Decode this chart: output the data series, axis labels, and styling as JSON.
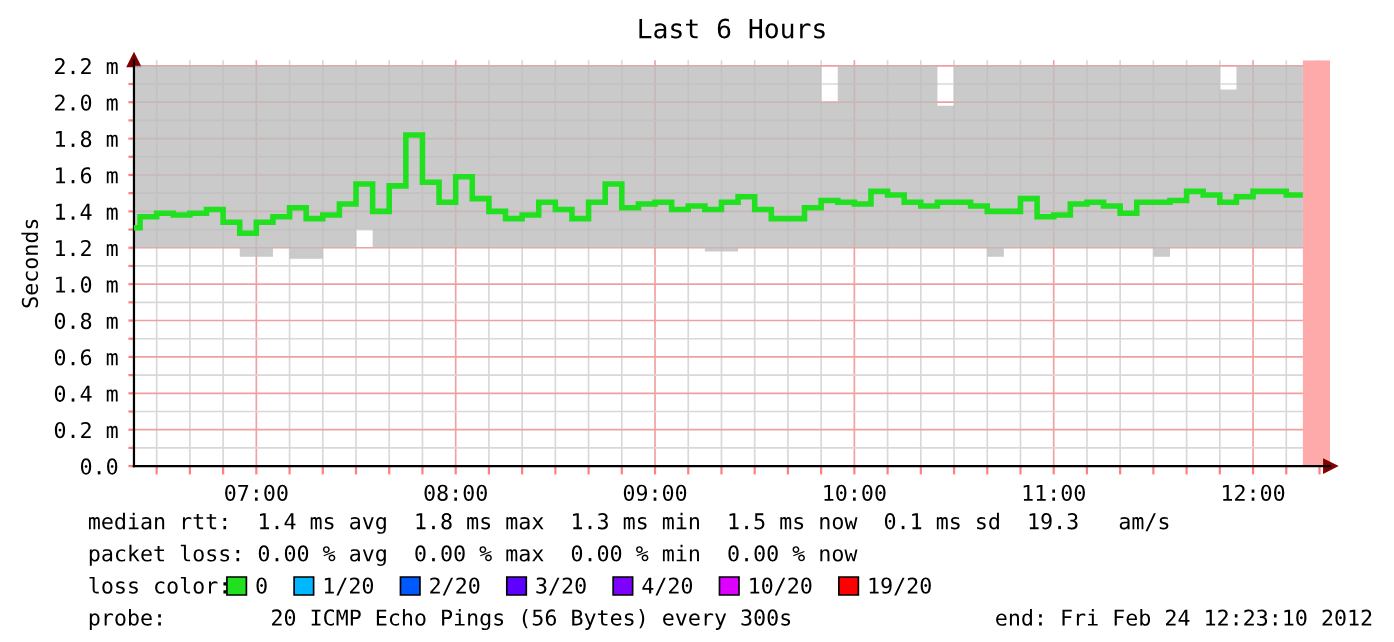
{
  "chart_data": {
    "type": "step",
    "title": "Last 6 Hours",
    "ylabel": "Seconds",
    "xlim": [
      6.3861,
      12.3861
    ],
    "xticks": [
      {
        "value": 6.5,
        "label": null
      },
      {
        "value": 6.6667,
        "label": null
      },
      {
        "value": 6.8333,
        "label": null
      },
      {
        "value": 7,
        "label": "07:00"
      },
      {
        "value": 7.1667,
        "label": null
      },
      {
        "value": 7.3333,
        "label": null
      },
      {
        "value": 7.5,
        "label": null
      },
      {
        "value": 7.6667,
        "label": null
      },
      {
        "value": 7.8333,
        "label": null
      },
      {
        "value": 8,
        "label": "08:00"
      },
      {
        "value": 8.1667,
        "label": null
      },
      {
        "value": 8.3333,
        "label": null
      },
      {
        "value": 8.5,
        "label": null
      },
      {
        "value": 8.6667,
        "label": null
      },
      {
        "value": 8.8333,
        "label": null
      },
      {
        "value": 9,
        "label": "09:00"
      },
      {
        "value": 9.1667,
        "label": null
      },
      {
        "value": 9.3333,
        "label": null
      },
      {
        "value": 9.5,
        "label": null
      },
      {
        "value": 9.6667,
        "label": null
      },
      {
        "value": 9.8333,
        "label": null
      },
      {
        "value": 10,
        "label": "10:00"
      },
      {
        "value": 10.1667,
        "label": null
      },
      {
        "value": 10.3333,
        "label": null
      },
      {
        "value": 10.5,
        "label": null
      },
      {
        "value": 10.6667,
        "label": null
      },
      {
        "value": 10.8333,
        "label": null
      },
      {
        "value": 11,
        "label": "11:00"
      },
      {
        "value": 11.1667,
        "label": null
      },
      {
        "value": 11.3333,
        "label": null
      },
      {
        "value": 11.5,
        "label": null
      },
      {
        "value": 11.6667,
        "label": null
      },
      {
        "value": 11.8333,
        "label": null
      },
      {
        "value": 12,
        "label": "12:00"
      },
      {
        "value": 12.1667,
        "label": null
      },
      {
        "value": 12.3333,
        "label": null
      }
    ],
    "ylim": [
      0,
      2.23
    ],
    "yticks": [
      {
        "value": 0,
        "label": "0.0"
      },
      {
        "value": 0.1,
        "label": null
      },
      {
        "value": 0.2,
        "label": "0.2 m"
      },
      {
        "value": 0.3,
        "label": null
      },
      {
        "value": 0.4,
        "label": "0.4 m"
      },
      {
        "value": 0.5,
        "label": null
      },
      {
        "value": 0.6,
        "label": "0.6 m"
      },
      {
        "value": 0.7,
        "label": null
      },
      {
        "value": 0.8,
        "label": "0.8 m"
      },
      {
        "value": 0.9,
        "label": null
      },
      {
        "value": 1.0,
        "label": "1.0 m"
      },
      {
        "value": 1.1,
        "label": null
      },
      {
        "value": 1.2,
        "label": "1.2 m"
      },
      {
        "value": 1.3,
        "label": null
      },
      {
        "value": 1.4,
        "label": "1.4 m"
      },
      {
        "value": 1.5,
        "label": null
      },
      {
        "value": 1.6,
        "label": "1.6 m"
      },
      {
        "value": 1.7,
        "label": null
      },
      {
        "value": 1.8,
        "label": "1.8 m"
      },
      {
        "value": 1.9,
        "label": null
      },
      {
        "value": 2.0,
        "label": "2.0 m"
      },
      {
        "value": 2.1,
        "label": null
      },
      {
        "value": 2.2,
        "label": "2.2 m"
      }
    ],
    "grid": true,
    "x": [
      6.4167,
      6.5,
      6.5833,
      6.6667,
      6.75,
      6.8333,
      6.9167,
      7.0,
      7.0833,
      7.1667,
      7.25,
      7.3333,
      7.4167,
      7.5,
      7.5833,
      7.6667,
      7.75,
      7.8333,
      7.9167,
      8.0,
      8.0833,
      8.1667,
      8.25,
      8.3333,
      8.4167,
      8.5,
      8.5833,
      8.6667,
      8.75,
      8.8333,
      8.9167,
      9.0,
      9.0833,
      9.1667,
      9.25,
      9.3333,
      9.4167,
      9.5,
      9.5833,
      9.6667,
      9.75,
      9.8333,
      9.9167,
      10.0,
      10.0833,
      10.1667,
      10.25,
      10.3333,
      10.4167,
      10.5,
      10.5833,
      10.6667,
      10.75,
      10.8333,
      10.9167,
      11.0,
      11.0833,
      11.1667,
      11.25,
      11.3333,
      11.4167,
      11.5,
      11.5833,
      11.6667,
      11.75,
      11.8333,
      11.9167,
      12.0,
      12.0833,
      12.1667,
      12.25
    ],
    "legend_title": "loss color:",
    "legend": "bottom",
    "series": [
      {
        "name": "0",
        "color": "#20e020",
        "values": [
          1.31,
          1.37,
          1.39,
          1.38,
          1.39,
          1.41,
          1.34,
          1.28,
          1.34,
          1.37,
          1.42,
          1.36,
          1.38,
          1.44,
          1.55,
          1.4,
          1.54,
          1.82,
          1.56,
          1.45,
          1.59,
          1.47,
          1.4,
          1.36,
          1.38,
          1.45,
          1.41,
          1.36,
          1.45,
          1.55,
          1.42,
          1.44,
          1.45,
          1.41,
          1.43,
          1.41,
          1.45,
          1.48,
          1.41,
          1.36,
          1.36,
          1.42,
          1.46,
          1.45,
          1.44,
          1.51,
          1.49,
          1.45,
          1.43,
          1.45,
          1.45,
          1.43,
          1.4,
          1.4,
          1.47,
          1.37,
          1.38,
          1.44,
          1.45,
          1.43,
          1.39,
          1.45,
          1.45,
          1.46,
          1.51,
          1.49,
          1.45,
          1.48,
          1.51,
          1.51,
          1.49
        ],
        "lower": [
          1.2,
          1.2,
          1.2,
          1.2,
          1.2,
          1.2,
          1.2,
          1.15,
          1.15,
          1.2,
          1.14,
          1.14,
          1.2,
          1.2,
          1.3,
          1.2,
          1.2,
          1.2,
          1.2,
          1.2,
          1.2,
          1.2,
          1.2,
          1.2,
          1.2,
          1.2,
          1.2,
          1.2,
          1.2,
          1.2,
          1.2,
          1.2,
          1.2,
          1.2,
          1.2,
          1.18,
          1.18,
          1.2,
          1.2,
          1.2,
          1.2,
          1.2,
          1.2,
          1.2,
          1.2,
          1.2,
          1.2,
          1.2,
          1.2,
          1.2,
          1.2,
          1.2,
          1.15,
          1.2,
          1.2,
          1.2,
          1.2,
          1.2,
          1.2,
          1.2,
          1.2,
          1.2,
          1.15,
          1.2,
          1.2,
          1.2,
          1.2,
          1.2,
          1.2,
          1.2,
          1.2
        ],
        "upper": [
          2.2,
          2.2,
          2.2,
          2.2,
          2.2,
          2.2,
          2.2,
          2.2,
          2.2,
          2.2,
          2.2,
          2.2,
          2.2,
          2.2,
          2.2,
          2.2,
          2.2,
          2.2,
          2.2,
          2.2,
          2.2,
          2.2,
          2.2,
          2.2,
          2.2,
          2.2,
          2.2,
          2.2,
          2.2,
          2.2,
          2.2,
          2.2,
          2.2,
          2.2,
          2.2,
          2.2,
          2.2,
          2.2,
          2.2,
          2.2,
          2.2,
          2.2,
          2.0,
          2.2,
          2.2,
          2.2,
          2.2,
          2.2,
          2.2,
          1.98,
          2.2,
          2.2,
          2.2,
          2.2,
          2.2,
          2.2,
          2.2,
          2.2,
          2.2,
          2.2,
          2.2,
          2.2,
          2.2,
          2.2,
          2.2,
          2.2,
          2.07,
          2.2,
          2.2,
          2.2,
          2.2
        ]
      },
      {
        "name": "1/20",
        "color": "#00b8ff",
        "values": [
          null,
          null,
          null,
          null,
          null,
          null,
          null,
          null,
          null,
          null,
          null,
          null,
          null,
          null,
          null,
          null,
          null,
          null,
          null,
          null,
          null,
          null,
          null,
          null,
          null,
          null,
          null,
          null,
          null,
          null,
          null,
          null,
          null,
          null,
          null,
          null,
          null,
          null,
          null,
          null,
          null,
          null,
          null,
          null,
          null,
          null,
          null,
          null,
          null,
          null,
          null,
          null,
          null,
          null,
          null,
          null,
          null,
          null,
          null,
          null,
          null,
          null,
          null,
          null,
          null,
          null,
          null,
          null,
          null,
          null,
          null
        ]
      },
      {
        "name": "2/20",
        "color": "#0059ff",
        "values": [
          null,
          null,
          null,
          null,
          null,
          null,
          null,
          null,
          null,
          null,
          null,
          null,
          null,
          null,
          null,
          null,
          null,
          null,
          null,
          null,
          null,
          null,
          null,
          null,
          null,
          null,
          null,
          null,
          null,
          null,
          null,
          null,
          null,
          null,
          null,
          null,
          null,
          null,
          null,
          null,
          null,
          null,
          null,
          null,
          null,
          null,
          null,
          null,
          null,
          null,
          null,
          null,
          null,
          null,
          null,
          null,
          null,
          null,
          null,
          null,
          null,
          null,
          null,
          null,
          null,
          null,
          null,
          null,
          null,
          null,
          null
        ]
      },
      {
        "name": "3/20",
        "color": "#5e00ff",
        "values": [
          null,
          null,
          null,
          null,
          null,
          null,
          null,
          null,
          null,
          null,
          null,
          null,
          null,
          null,
          null,
          null,
          null,
          null,
          null,
          null,
          null,
          null,
          null,
          null,
          null,
          null,
          null,
          null,
          null,
          null,
          null,
          null,
          null,
          null,
          null,
          null,
          null,
          null,
          null,
          null,
          null,
          null,
          null,
          null,
          null,
          null,
          null,
          null,
          null,
          null,
          null,
          null,
          null,
          null,
          null,
          null,
          null,
          null,
          null,
          null,
          null,
          null,
          null,
          null,
          null,
          null,
          null,
          null,
          null,
          null,
          null
        ]
      },
      {
        "name": "4/20",
        "color": "#7e00ff",
        "values": [
          null,
          null,
          null,
          null,
          null,
          null,
          null,
          null,
          null,
          null,
          null,
          null,
          null,
          null,
          null,
          null,
          null,
          null,
          null,
          null,
          null,
          null,
          null,
          null,
          null,
          null,
          null,
          null,
          null,
          null,
          null,
          null,
          null,
          null,
          null,
          null,
          null,
          null,
          null,
          null,
          null,
          null,
          null,
          null,
          null,
          null,
          null,
          null,
          null,
          null,
          null,
          null,
          null,
          null,
          null,
          null,
          null,
          null,
          null,
          null,
          null,
          null,
          null,
          null,
          null,
          null,
          null,
          null,
          null,
          null,
          null
        ]
      },
      {
        "name": "10/20",
        "color": "#dd00ff",
        "values": [
          null,
          null,
          null,
          null,
          null,
          null,
          null,
          null,
          null,
          null,
          null,
          null,
          null,
          null,
          null,
          null,
          null,
          null,
          null,
          null,
          null,
          null,
          null,
          null,
          null,
          null,
          null,
          null,
          null,
          null,
          null,
          null,
          null,
          null,
          null,
          null,
          null,
          null,
          null,
          null,
          null,
          null,
          null,
          null,
          null,
          null,
          null,
          null,
          null,
          null,
          null,
          null,
          null,
          null,
          null,
          null,
          null,
          null,
          null,
          null,
          null,
          null,
          null,
          null,
          null,
          null,
          null,
          null,
          null,
          null,
          null
        ]
      },
      {
        "name": "19/20",
        "color": "#ff0000",
        "values": [
          null,
          null,
          null,
          null,
          null,
          null,
          null,
          null,
          null,
          null,
          null,
          null,
          null,
          null,
          null,
          null,
          null,
          null,
          null,
          null,
          null,
          null,
          null,
          null,
          null,
          null,
          null,
          null,
          null,
          null,
          null,
          null,
          null,
          null,
          null,
          null,
          null,
          null,
          null,
          null,
          null,
          null,
          null,
          null,
          null,
          null,
          null,
          null,
          null,
          null,
          null,
          null,
          null,
          null,
          null,
          null,
          null,
          null,
          null,
          null,
          null,
          null,
          null,
          null,
          null,
          null,
          null,
          null,
          null,
          null,
          null
        ]
      }
    ],
    "bands": [
      {
        "axis": "x",
        "from": 12.25,
        "to": 12.3861,
        "color": "#ffaaaa"
      }
    ],
    "annotations": [
      "median rtt:  1.4 ms avg  1.8 ms max  1.3 ms min  1.5 ms now  0.1 ms sd  19.3   am/s",
      "packet loss: 0.00 % avg  0.00 % max  0.00 % min  0.00 % now",
      "probe:        20 ICMP Echo Pings (56 Bytes) every 300s",
      "end: Fri Feb 24 12:23:10 2012"
    ]
  }
}
